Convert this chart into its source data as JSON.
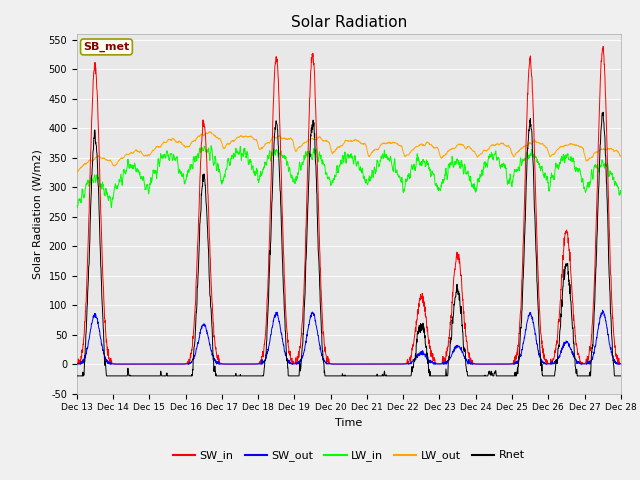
{
  "title": "Solar Radiation",
  "xlabel": "Time",
  "ylabel": "Solar Radiation (W/m2)",
  "ylim": [
    -50,
    560
  ],
  "yticks": [
    -50,
    0,
    50,
    100,
    150,
    200,
    250,
    300,
    350,
    400,
    450,
    500,
    550
  ],
  "fig_bg_color": "#f0f0f0",
  "plot_bg_color": "#e8e8e8",
  "annotation_text": "SB_met",
  "annotation_color": "#8b0000",
  "annotation_bg": "#fffff0",
  "annotation_border": "#999900",
  "n_days": 15,
  "start_day": 13,
  "day_peaks_SW": [
    505,
    0,
    0,
    410,
    0,
    520,
    525,
    0,
    0,
    115,
    185,
    0,
    515,
    225,
    535
  ],
  "legend_labels": [
    "SW_in",
    "SW_out",
    "LW_in",
    "LW_out",
    "Rnet"
  ],
  "legend_colors": [
    "red",
    "blue",
    "lime",
    "orange",
    "black"
  ]
}
